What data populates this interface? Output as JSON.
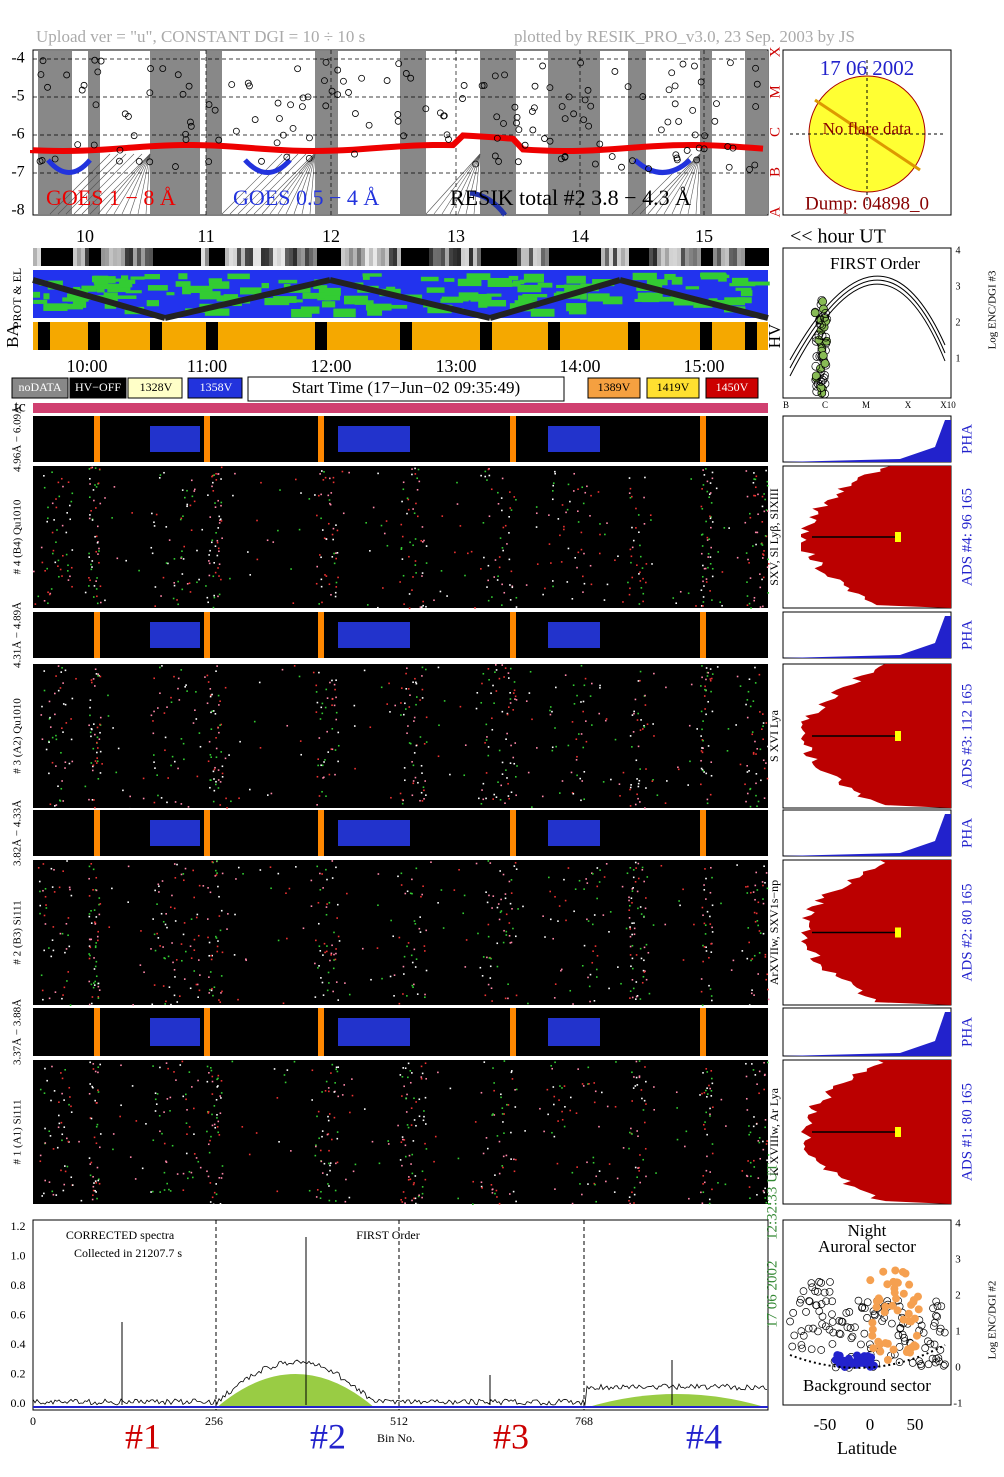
{
  "header": {
    "upload": "Upload ver = \"u\", CONSTANT  DGI =  10 ÷  10 s",
    "plotted": "plotted by RESIK_PRO_v3.0, 23 Sep. 2003 by JS"
  },
  "goes": {
    "yticks": [
      "-4",
      "-5",
      "-6",
      "-7",
      "-8"
    ],
    "classes": [
      "X",
      "M",
      "C",
      "B",
      "A"
    ],
    "legend": [
      "GOES 1 − 8 Å",
      "GOES 0.5 − 4 Å",
      "RESIK total #2  3.8 − 4.3 Å"
    ]
  },
  "info": {
    "date": "17 06 2002",
    "status": "No flare data",
    "dump": "Dump: 04898_0"
  },
  "hours": {
    "labels": [
      "10",
      "11",
      "12",
      "13",
      "14",
      "15"
    ],
    "unit": "<< hour UT"
  },
  "rows": {
    "prot": "PROT & EL",
    "ba": "BA",
    "hv": "HV"
  },
  "first_order": {
    "title": "FIRST Order",
    "ylabel": "Log ENC/DGI #3",
    "yticks": [
      "1",
      "2",
      "3",
      "4"
    ],
    "xticks": [
      "B",
      "C",
      "M",
      "X",
      "X10"
    ]
  },
  "time_axis": [
    "10:00",
    "11:00",
    "12:00",
    "13:00",
    "14:00",
    "15:00"
  ],
  "legend": {
    "left": [
      "noDATA",
      "HV−OFF",
      "1328V",
      "1358V"
    ],
    "start": "Start Time (17−Jun−02 09:35:49)",
    "right": [
      "1389V",
      "1419V",
      "1450V"
    ]
  },
  "tc": "tc",
  "channels": [
    {
      "pha_label": "4.96Å − 6.09Å",
      "label": "# 4 (B4) Qu1010",
      "pha": "PHA",
      "lines": "SXV, Sl Lyβ, SIXIII",
      "ads": "ADS #4:   96 165"
    },
    {
      "pha_label": "4.31Å − 4.89Å",
      "label": "# 3 (A2) Qu1010",
      "pha": "PHA",
      "lines": "S XVI Lya",
      "ads": "ADS #3:   112 165"
    },
    {
      "pha_label": "3.82Å − 4.33Å",
      "label": "# 2 (B3) Si111",
      "pha": "PHA",
      "lines": "ArXVIIw, SXV1s−np",
      "ads": "ADS #2:   80 165"
    },
    {
      "pha_label": "3.37Å − 3.88Å",
      "label": "# 1 (A1) Si111",
      "pha": "PHA",
      "lines": "K XVIIIw, Ar Lya",
      "ads": "ADS #1:   80 165"
    }
  ],
  "spectrum": {
    "note1": "CORRECTED spectra",
    "note2": "Collected in 21207.7 s",
    "title": "FIRST Order",
    "yticks": [
      "0.0",
      "0.2",
      "0.4",
      "0.6",
      "0.8",
      "1.0",
      "1.2"
    ],
    "xticks": [
      "0",
      "256",
      "512",
      "768"
    ],
    "xlabel": "Bin No.",
    "sections": [
      "#1",
      "#2",
      "#3",
      "#4"
    ],
    "time": "12:32:33 UT",
    "date": "17 06 2002"
  },
  "latitude": {
    "night": "Night",
    "auroral": "Auroral sector",
    "background": "Background sector",
    "xlabel": "Latitude",
    "xticks": [
      "-50",
      "0",
      "50"
    ],
    "ylabel": "Log ENC/DGI #2",
    "yticks": [
      "-1",
      "0",
      "1",
      "2",
      "3",
      "4"
    ]
  }
}
